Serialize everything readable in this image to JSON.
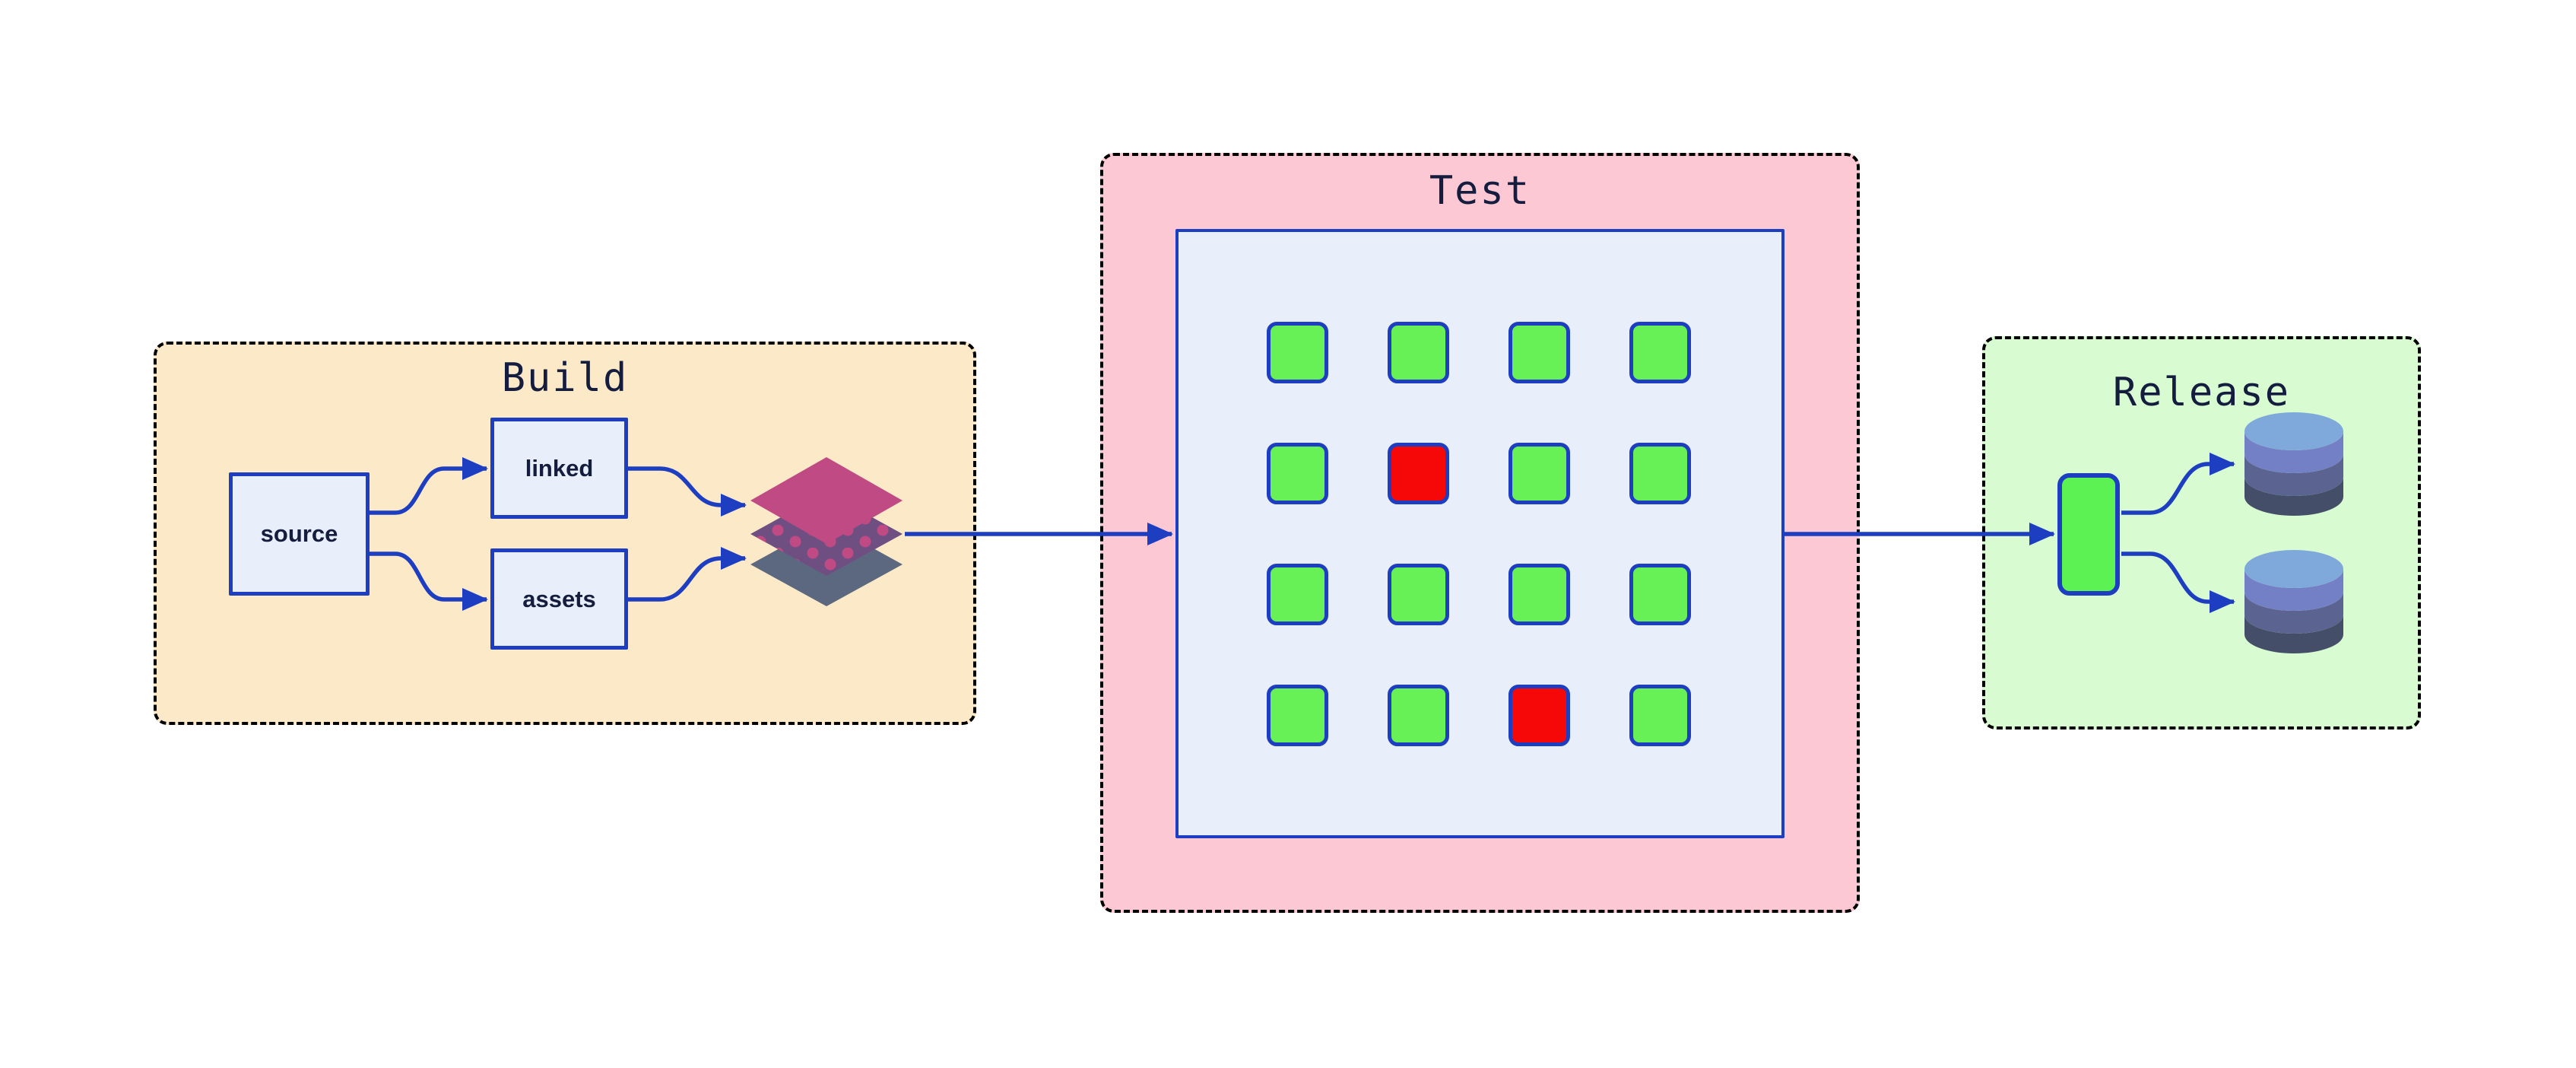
{
  "colors": {
    "canvas-bg": "#ffffff",
    "stroke-blue": "#1d3ec0",
    "text-navy": "#141d3e",
    "node-fill": "#e9eefb",
    "build-bg": "#fce9c8",
    "test-bg": "#fbc8d4",
    "release-bg": "#d8fbd2",
    "pass-green": "#68f157",
    "fail-red": "#f70808",
    "artifact-green": "#5df254",
    "layer-top": "#bf4a84",
    "layer-mid": "#6f4f82",
    "layer-dot": "#bf4a84",
    "layer-bottom": "#5c6880",
    "db-top": "#7fa9da",
    "db-band1": "#7380c5",
    "db-band2": "#5b6490",
    "db-band3": "#454e69"
  },
  "sections": {
    "build": {
      "label": "Build",
      "nodes": {
        "source": "source",
        "linked": "linked",
        "assets": "assets"
      },
      "icon": "layers-icon"
    },
    "test": {
      "label": "Test",
      "grid": {
        "rows": 4,
        "cols": 4,
        "cells": [
          [
            "pass",
            "pass",
            "pass",
            "pass"
          ],
          [
            "pass",
            "fail",
            "pass",
            "pass"
          ],
          [
            "pass",
            "pass",
            "pass",
            "pass"
          ],
          [
            "pass",
            "pass",
            "fail",
            "pass"
          ]
        ]
      }
    },
    "release": {
      "label": "Release",
      "icons": [
        "artifact-node",
        "database-icon",
        "database-icon"
      ]
    }
  },
  "edges": [
    {
      "from": "source",
      "to": "linked"
    },
    {
      "from": "source",
      "to": "assets"
    },
    {
      "from": "linked",
      "to": "layers-icon"
    },
    {
      "from": "assets",
      "to": "layers-icon"
    },
    {
      "from": "layers-icon",
      "to": "test-panel"
    },
    {
      "from": "test-panel",
      "to": "artifact-node"
    },
    {
      "from": "artifact-node",
      "to": "database-1"
    },
    {
      "from": "artifact-node",
      "to": "database-2"
    }
  ]
}
